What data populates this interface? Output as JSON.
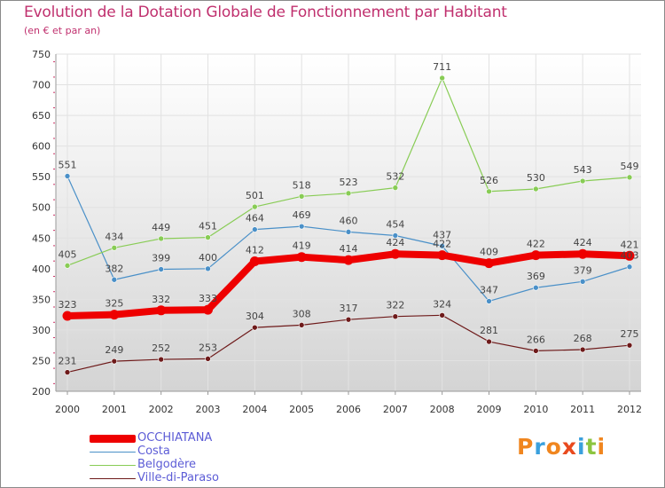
{
  "header": {
    "title": "Evolution de la Dotation Globale de Fonctionnement par Habitant",
    "subtitle": "(en € et par an)"
  },
  "logo": {
    "text": "Proxiti",
    "colors": [
      "#f0861f",
      "#3aa0dd",
      "#f0861f",
      "#e94a1e",
      "#3aa0dd",
      "#8cc540",
      "#f0861f"
    ]
  },
  "chart_data": {
    "type": "line",
    "title": "Evolution de la Dotation Globale de Fonctionnement par Habitant",
    "subtitle": "(en € et par an)",
    "xlabel": "",
    "ylabel": "",
    "ylim": [
      200,
      750
    ],
    "yticks": [
      200,
      250,
      300,
      350,
      400,
      450,
      500,
      550,
      600,
      650,
      700,
      750
    ],
    "grid": true,
    "legend_position": "bottom-left",
    "categories": [
      "2000",
      "2001",
      "2002",
      "2003",
      "2004",
      "2005",
      "2006",
      "2007",
      "2008",
      "2009",
      "2010",
      "2011",
      "2012"
    ],
    "series": [
      {
        "name": "OCCHIATANA",
        "color": "#ee0000",
        "values": [
          323,
          325,
          332,
          333,
          412,
          419,
          414,
          424,
          422,
          409,
          422,
          424,
          421
        ]
      },
      {
        "name": "Costa",
        "color": "#4a90c8",
        "values": [
          551,
          382,
          399,
          400,
          464,
          469,
          460,
          454,
          437,
          347,
          369,
          379,
          403
        ]
      },
      {
        "name": "Belgodère",
        "color": "#88cc55",
        "values": [
          405,
          434,
          449,
          451,
          501,
          518,
          523,
          532,
          711,
          526,
          530,
          543,
          549
        ]
      },
      {
        "name": "Ville-di-Paraso",
        "color": "#6e1a1a",
        "values": [
          231,
          249,
          252,
          253,
          304,
          308,
          317,
          322,
          324,
          281,
          266,
          268,
          275
        ]
      }
    ]
  }
}
